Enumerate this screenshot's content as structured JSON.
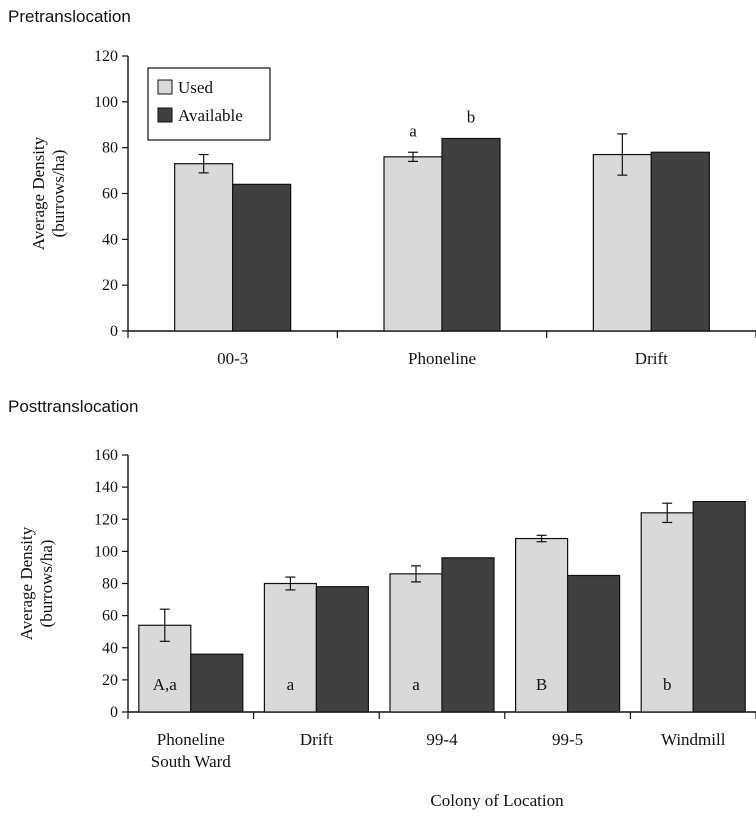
{
  "panels": {
    "top": {
      "heading": "Pretranslocation"
    },
    "bottom": {
      "heading": "Posttranslocation"
    }
  },
  "colors": {
    "used": "#d9d9d9",
    "available": "#404040",
    "stroke": "#111111"
  },
  "chart_data": [
    {
      "type": "bar",
      "title": "Pretranslocation",
      "ylabel": "Average Density (burrows/ha)",
      "xlabel": "",
      "ylim": [
        0,
        120
      ],
      "yticks": [
        0,
        20,
        40,
        60,
        80,
        100,
        120
      ],
      "legend": {
        "placement": "top-left",
        "entries": [
          "Used",
          "Available"
        ]
      },
      "categories": [
        "00-3",
        "Phoneline",
        "Drift"
      ],
      "series": [
        {
          "name": "Used",
          "values": [
            73,
            76,
            77
          ],
          "error": [
            4,
            2,
            9
          ]
        },
        {
          "name": "Available",
          "values": [
            64,
            84,
            78
          ]
        }
      ],
      "annotations": [
        {
          "category": "Phoneline",
          "series": "Used",
          "text": "a",
          "position": "above"
        },
        {
          "category": "Phoneline",
          "series": "Available",
          "text": "b",
          "position": "above"
        }
      ]
    },
    {
      "type": "bar",
      "title": "Posttranslocation",
      "ylabel": "Average Density (burrows/ha)",
      "xlabel": "Colony of Location",
      "ylim": [
        0,
        160
      ],
      "yticks": [
        0,
        20,
        40,
        60,
        80,
        100,
        120,
        140,
        160
      ],
      "categories": [
        [
          "Phoneline",
          "South Ward"
        ],
        [
          "Drift"
        ],
        [
          "99-4"
        ],
        [
          "99-5"
        ],
        [
          "Windmill"
        ]
      ],
      "series": [
        {
          "name": "Used",
          "values": [
            54,
            80,
            86,
            108,
            124
          ],
          "error": [
            10,
            4,
            5,
            2,
            6
          ]
        },
        {
          "name": "Available",
          "values": [
            36,
            78,
            96,
            85,
            131
          ]
        }
      ],
      "annotations": [
        {
          "category": 0,
          "series": "Used",
          "text": "A,a",
          "position": "inside"
        },
        {
          "category": 1,
          "series": "Used",
          "text": "a",
          "position": "inside"
        },
        {
          "category": 2,
          "series": "Used",
          "text": "a",
          "position": "inside"
        },
        {
          "category": 3,
          "series": "Used",
          "text": "B",
          "position": "inside"
        },
        {
          "category": 4,
          "series": "Used",
          "text": "b",
          "position": "inside"
        }
      ]
    }
  ]
}
